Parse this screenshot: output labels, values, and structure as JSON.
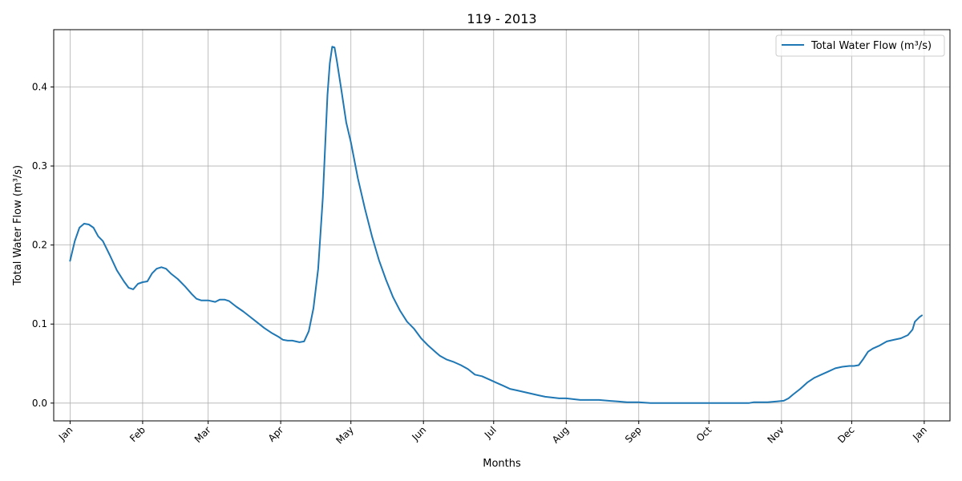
{
  "chart_data": {
    "type": "line",
    "title": "119 - 2013",
    "xlabel": "Months",
    "ylabel": "Total Water Flow (m³/s)",
    "grid": true,
    "legend_position": "top-right",
    "xlim": [
      -7,
      376
    ],
    "ylim": [
      -0.0225,
      0.4725
    ],
    "x_ticks": [
      {
        "day": 0,
        "label": "Jan"
      },
      {
        "day": 31,
        "label": "Feb"
      },
      {
        "day": 59,
        "label": "Mar"
      },
      {
        "day": 90,
        "label": "Apr"
      },
      {
        "day": 120,
        "label": "May"
      },
      {
        "day": 151,
        "label": "Jun"
      },
      {
        "day": 181,
        "label": "Jul"
      },
      {
        "day": 212,
        "label": "Aug"
      },
      {
        "day": 243,
        "label": "Sep"
      },
      {
        "day": 273,
        "label": "Oct"
      },
      {
        "day": 304,
        "label": "Nov"
      },
      {
        "day": 334,
        "label": "Dec"
      },
      {
        "day": 365,
        "label": "Jan"
      }
    ],
    "y_ticks": [
      {
        "value": 0.0,
        "label": "0.0"
      },
      {
        "value": 0.1,
        "label": "0.1"
      },
      {
        "value": 0.2,
        "label": "0.2"
      },
      {
        "value": 0.3,
        "label": "0.3"
      },
      {
        "value": 0.4,
        "label": "0.4"
      }
    ],
    "series": [
      {
        "name": "Total Water Flow (m³/s)",
        "color": "#1f77b4",
        "points": [
          [
            0,
            0.18
          ],
          [
            2,
            0.205
          ],
          [
            4,
            0.222
          ],
          [
            6,
            0.227
          ],
          [
            8,
            0.226
          ],
          [
            10,
            0.222
          ],
          [
            12,
            0.211
          ],
          [
            14,
            0.205
          ],
          [
            17,
            0.187
          ],
          [
            20,
            0.168
          ],
          [
            23,
            0.154
          ],
          [
            25,
            0.146
          ],
          [
            27,
            0.144
          ],
          [
            29,
            0.151
          ],
          [
            31,
            0.153
          ],
          [
            33,
            0.154
          ],
          [
            35,
            0.164
          ],
          [
            37,
            0.17
          ],
          [
            39,
            0.172
          ],
          [
            41,
            0.17
          ],
          [
            43,
            0.164
          ],
          [
            46,
            0.157
          ],
          [
            49,
            0.148
          ],
          [
            52,
            0.138
          ],
          [
            54,
            0.132
          ],
          [
            56,
            0.13
          ],
          [
            59,
            0.13
          ],
          [
            62,
            0.128
          ],
          [
            64,
            0.131
          ],
          [
            66,
            0.131
          ],
          [
            68,
            0.129
          ],
          [
            71,
            0.122
          ],
          [
            74,
            0.116
          ],
          [
            77,
            0.109
          ],
          [
            80,
            0.102
          ],
          [
            83,
            0.095
          ],
          [
            86,
            0.089
          ],
          [
            89,
            0.084
          ],
          [
            91,
            0.08
          ],
          [
            93,
            0.079
          ],
          [
            95,
            0.079
          ],
          [
            98,
            0.077
          ],
          [
            100,
            0.078
          ],
          [
            102,
            0.091
          ],
          [
            104,
            0.12
          ],
          [
            106,
            0.17
          ],
          [
            108,
            0.26
          ],
          [
            110,
            0.39
          ],
          [
            111,
            0.43
          ],
          [
            112,
            0.451
          ],
          [
            113,
            0.45
          ],
          [
            114,
            0.433
          ],
          [
            116,
            0.395
          ],
          [
            118,
            0.355
          ],
          [
            120,
            0.33
          ],
          [
            123,
            0.284
          ],
          [
            126,
            0.246
          ],
          [
            129,
            0.211
          ],
          [
            132,
            0.181
          ],
          [
            135,
            0.156
          ],
          [
            138,
            0.134
          ],
          [
            141,
            0.117
          ],
          [
            144,
            0.103
          ],
          [
            147,
            0.094
          ],
          [
            150,
            0.082
          ],
          [
            153,
            0.073
          ],
          [
            156,
            0.065
          ],
          [
            158,
            0.06
          ],
          [
            161,
            0.055
          ],
          [
            164,
            0.052
          ],
          [
            167,
            0.048
          ],
          [
            170,
            0.043
          ],
          [
            173,
            0.036
          ],
          [
            176,
            0.034
          ],
          [
            179,
            0.03
          ],
          [
            182,
            0.026
          ],
          [
            185,
            0.022
          ],
          [
            188,
            0.018
          ],
          [
            191,
            0.016
          ],
          [
            194,
            0.014
          ],
          [
            197,
            0.012
          ],
          [
            200,
            0.01
          ],
          [
            203,
            0.008
          ],
          [
            206,
            0.007
          ],
          [
            209,
            0.006
          ],
          [
            212,
            0.006
          ],
          [
            215,
            0.005
          ],
          [
            218,
            0.004
          ],
          [
            222,
            0.004
          ],
          [
            226,
            0.004
          ],
          [
            230,
            0.003
          ],
          [
            234,
            0.002
          ],
          [
            238,
            0.001
          ],
          [
            243,
            0.001
          ],
          [
            248,
            0.0
          ],
          [
            260,
            0.0
          ],
          [
            273,
            0.0
          ],
          [
            290,
            0.0
          ],
          [
            292,
            0.001
          ],
          [
            298,
            0.001
          ],
          [
            302,
            0.002
          ],
          [
            305,
            0.003
          ],
          [
            307,
            0.006
          ],
          [
            309,
            0.011
          ],
          [
            312,
            0.018
          ],
          [
            315,
            0.026
          ],
          [
            318,
            0.032
          ],
          [
            321,
            0.036
          ],
          [
            324,
            0.04
          ],
          [
            327,
            0.044
          ],
          [
            330,
            0.046
          ],
          [
            333,
            0.047
          ],
          [
            335,
            0.047
          ],
          [
            337,
            0.048
          ],
          [
            339,
            0.056
          ],
          [
            341,
            0.065
          ],
          [
            343,
            0.069
          ],
          [
            346,
            0.073
          ],
          [
            349,
            0.078
          ],
          [
            352,
            0.08
          ],
          [
            355,
            0.082
          ],
          [
            358,
            0.086
          ],
          [
            360,
            0.093
          ],
          [
            361,
            0.103
          ],
          [
            363,
            0.109
          ],
          [
            364,
            0.111
          ]
        ]
      }
    ]
  }
}
